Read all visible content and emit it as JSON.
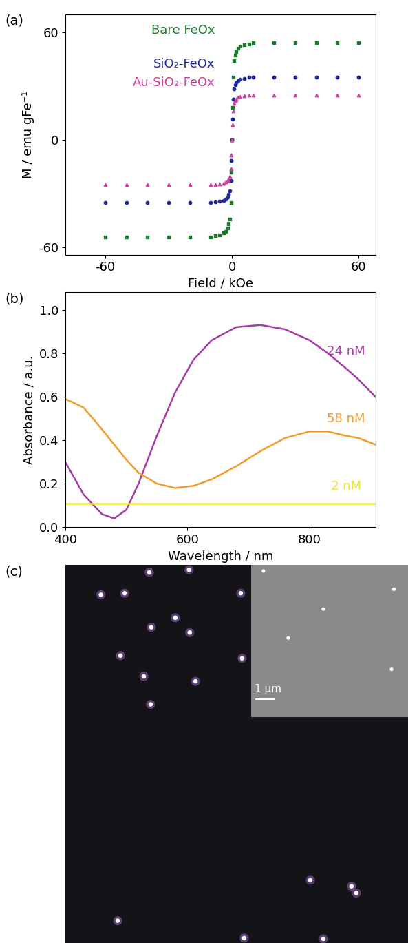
{
  "chart_data": [
    {
      "type": "scatter",
      "panel_label": "(a)",
      "x_label": "Field / kOe",
      "y_label": "M / emu gFe⁻¹",
      "xlim": [
        -79,
        68
      ],
      "xticks": [
        -60,
        0,
        60
      ],
      "ylim": [
        -64,
        70
      ],
      "yticks": [
        -60,
        0,
        60
      ],
      "x": [
        -60,
        -50,
        -40,
        -30,
        -20,
        -10,
        -8,
        -6,
        -4,
        -3,
        -2,
        -1.5,
        -1,
        -0.5,
        -0.2,
        0,
        0.2,
        0.5,
        1,
        1.5,
        2,
        3,
        4,
        6,
        8,
        10,
        20,
        30,
        40,
        50,
        60
      ],
      "series": [
        {
          "name": "Bare FeOx",
          "color": "#1e7b2e",
          "marker": "square",
          "values": [
            -54,
            -54,
            -54,
            -54,
            -54,
            -54,
            -53.5,
            -53,
            -52,
            -51,
            -49,
            -47,
            -44,
            -35,
            -18,
            0,
            18,
            35,
            44,
            47,
            49,
            51,
            52,
            53,
            53.5,
            54,
            54,
            54,
            54,
            54,
            54
          ]
        },
        {
          "name": "SiO₂-FeOx",
          "color": "#1f2a9a",
          "marker": "circle",
          "values": [
            -35,
            -35,
            -35,
            -35,
            -35,
            -35,
            -34.7,
            -34.3,
            -33.7,
            -33,
            -31.8,
            -30.5,
            -28.5,
            -22.5,
            -11.5,
            0,
            11.5,
            22.5,
            28.5,
            30.5,
            31.8,
            33,
            33.7,
            34.3,
            34.7,
            35,
            35,
            35,
            35,
            35,
            35
          ]
        },
        {
          "name": "Au-SiO₂-FeOx",
          "color": "#c8409c",
          "marker": "triangle",
          "values": [
            -25,
            -25,
            -25,
            -25,
            -25,
            -25,
            -24.8,
            -24.5,
            -24.1,
            -23.6,
            -22.7,
            -21.8,
            -20.4,
            -16.2,
            -8.3,
            0,
            8.3,
            16.2,
            20.4,
            21.8,
            22.7,
            23.6,
            24.1,
            24.5,
            24.8,
            25,
            25,
            25,
            25,
            25,
            25
          ]
        }
      ]
    },
    {
      "type": "line",
      "panel_label": "(b)",
      "x_label": "Wavelength / nm",
      "y_label": "Absorbance / a.u.",
      "xlim": [
        400,
        908
      ],
      "xticks": [
        400,
        600,
        800
      ],
      "ylim": [
        0,
        1.08
      ],
      "yticks": [
        {
          "value": 0,
          "label": "0.0"
        },
        {
          "value": 0.2,
          "label": "0.2"
        },
        {
          "value": 0.4,
          "label": "0.4"
        },
        {
          "value": 0.6,
          "label": "0.6"
        },
        {
          "value": 0.8,
          "label": "0.8"
        },
        {
          "value": 1.0,
          "label": "1.0"
        }
      ],
      "x": [
        400,
        430,
        460,
        480,
        500,
        520,
        550,
        580,
        610,
        640,
        680,
        720,
        760,
        800,
        830,
        860,
        880,
        908
      ],
      "series": [
        {
          "name": "24 nM",
          "color": "#a63aa8",
          "values": [
            0.3,
            0.15,
            0.06,
            0.04,
            0.08,
            0.2,
            0.42,
            0.62,
            0.77,
            0.86,
            0.92,
            0.93,
            0.91,
            0.86,
            0.8,
            0.73,
            0.68,
            0.6
          ]
        },
        {
          "name": "58 nM",
          "color": "#f39a2a",
          "values": [
            0.59,
            0.55,
            0.45,
            0.38,
            0.31,
            0.25,
            0.2,
            0.18,
            0.19,
            0.22,
            0.28,
            0.35,
            0.41,
            0.44,
            0.44,
            0.42,
            0.41,
            0.38
          ]
        },
        {
          "name": "2 nM",
          "color": "#f0e03a",
          "values": [
            0.11,
            0.11,
            0.11,
            0.11,
            0.11,
            0.11,
            0.11,
            0.11,
            0.11,
            0.11,
            0.11,
            0.11,
            0.11,
            0.11,
            0.11,
            0.11,
            0.11,
            0.11
          ]
        }
      ]
    },
    {
      "type": "image",
      "panel_label": "(c)",
      "tick_labels": false,
      "xlim": [
        0,
        100
      ],
      "ylim": [
        0,
        100
      ],
      "color": "#b070e0",
      "x": [
        10.4,
        17.3,
        24.5,
        36.1,
        51.2,
        32.1,
        25.1,
        36.3,
        16.1,
        51.6,
        22.9,
        38.0,
        24.9,
        71.5,
        83.5,
        84.9,
        15.3,
        52.2,
        75.3
      ],
      "y": [
        92.1,
        92.5,
        98.0,
        98.7,
        92.5,
        86.0,
        83.5,
        82.1,
        76.0,
        75.3,
        70.5,
        69.2,
        63.1,
        16.6,
        15.0,
        13.2,
        5.9,
        1.3,
        1.1
      ],
      "inset": {
        "xlim": [
          0,
          100
        ],
        "ylim": [
          0,
          100
        ],
        "x": [
          7.9,
          91.0,
          46.0,
          23.7,
          89.5
        ],
        "y": [
          96.0,
          84.0,
          71.0,
          52.0,
          31.5
        ],
        "scale_bar_label": "1 µm",
        "scale_bar_length": 12
      }
    }
  ]
}
